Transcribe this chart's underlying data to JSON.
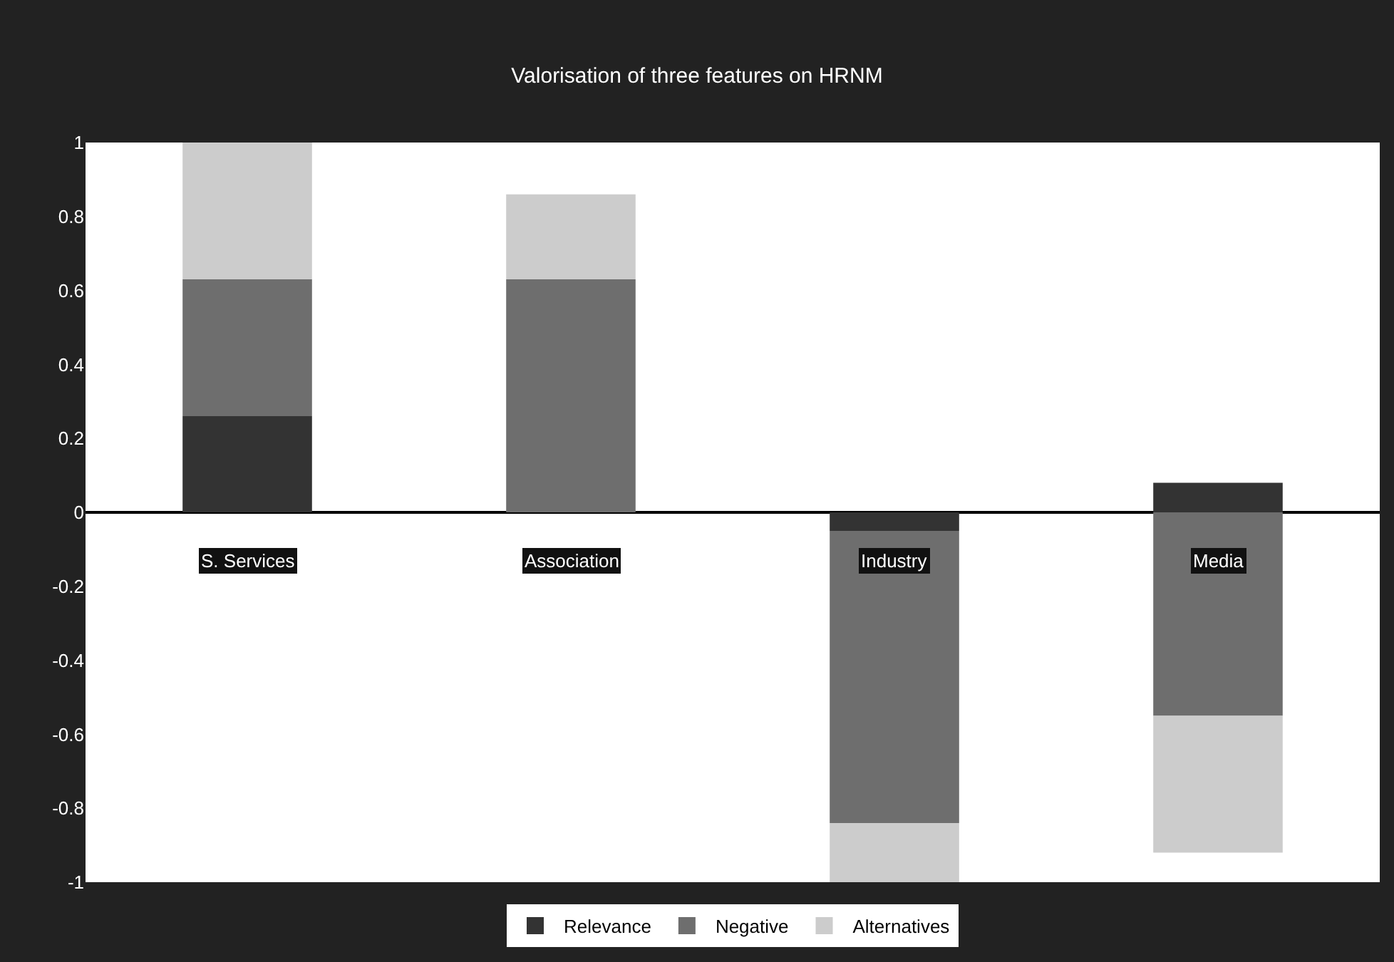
{
  "chart_data": {
    "type": "bar",
    "title": "Valorisation of three features on HRNM",
    "stacked": true,
    "categories": [
      "S. Services",
      "Association",
      "Industry",
      "Media"
    ],
    "series": [
      {
        "name": "Relevance",
        "color": "#333333",
        "values": [
          0.26,
          0,
          -0.05,
          0.08
        ]
      },
      {
        "name": "Negative",
        "color": "#6e6e6e",
        "values": [
          0.37,
          0.63,
          -0.79,
          -0.55
        ]
      },
      {
        "name": "Alternatives",
        "color": "#cccccc",
        "values": [
          0.37,
          0.23,
          -0.16,
          -0.37
        ]
      }
    ],
    "ylim": [
      -1,
      1
    ],
    "yticks": [
      -1,
      -0.8,
      -0.6,
      -0.4,
      -0.2,
      0,
      0.2,
      0.4,
      0.6,
      0.8,
      1
    ],
    "legend": "bottom"
  }
}
